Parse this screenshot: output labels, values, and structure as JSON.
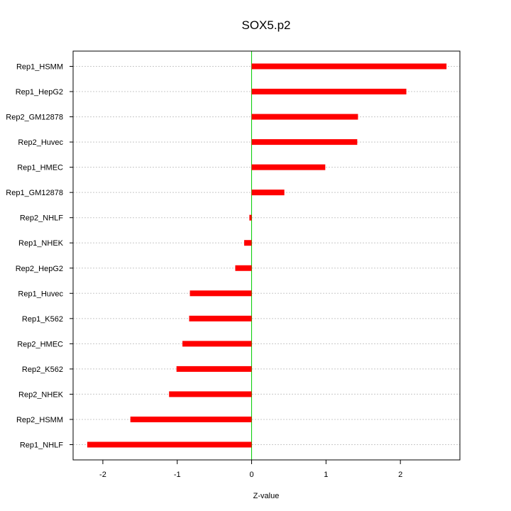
{
  "chart_data": {
    "type": "bar",
    "orientation": "horizontal",
    "title": "SOX5.p2",
    "xlabel": "Z-value",
    "ylabel": "",
    "xlim": [
      -2.4,
      2.8
    ],
    "xticks": [
      -2,
      -1,
      0,
      1,
      2
    ],
    "grid": true,
    "categories": [
      "Rep1_HSMM",
      "Rep1_HepG2",
      "Rep2_GM12878",
      "Rep2_Huvec",
      "Rep1_HMEC",
      "Rep1_GM12878",
      "Rep2_NHLF",
      "Rep1_NHEK",
      "Rep2_HepG2",
      "Rep1_Huvec",
      "Rep1_K562",
      "Rep2_HMEC",
      "Rep2_K562",
      "Rep2_NHEK",
      "Rep2_HSMM",
      "Rep1_NHLF"
    ],
    "values": [
      2.62,
      2.08,
      1.43,
      1.42,
      0.99,
      0.44,
      -0.03,
      -0.1,
      -0.22,
      -0.83,
      -0.84,
      -0.93,
      -1.01,
      -1.11,
      -1.63,
      -2.21
    ],
    "bar_color": "#ff0000",
    "zero_line_color": "#00cc00"
  }
}
